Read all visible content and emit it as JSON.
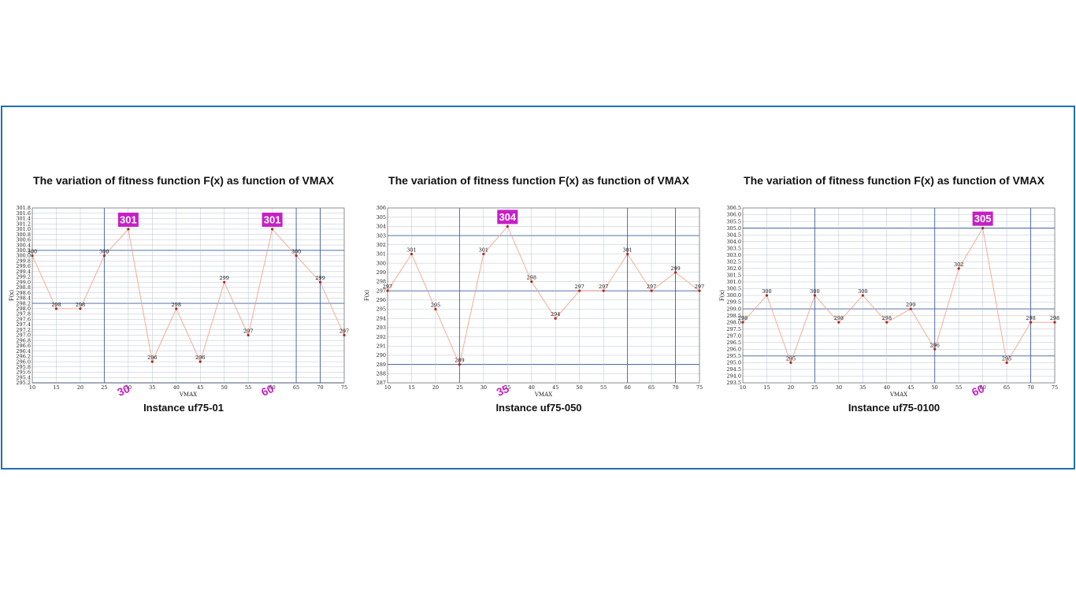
{
  "colors": {
    "frame": "#1f6fb5",
    "highlight": "#c61fc6",
    "line": "#f4a38a",
    "point": "#b0281a",
    "minor_grid": "#b8c3d0",
    "major_grid": "#3d5fa0"
  },
  "chart_data": [
    {
      "type": "line",
      "title": "The variation of fitness function F(x) as function of VMAX",
      "caption": "Instance uf75-01",
      "xlabel": "VMAX",
      "ylabel": "F(x)",
      "x": [
        10,
        15,
        20,
        25,
        30,
        35,
        40,
        45,
        50,
        55,
        60,
        65,
        70,
        75
      ],
      "values": [
        300,
        298,
        298,
        300,
        301,
        296,
        298,
        296,
        299,
        297,
        301,
        300,
        299,
        297
      ],
      "labels": [
        "300",
        "298",
        "298",
        "300",
        "301",
        "296",
        "298",
        "296",
        "299",
        "297",
        "301",
        "300",
        "299",
        "297"
      ],
      "ylim": [
        295.2,
        301.8
      ],
      "ystep": 0.2,
      "ydecimals": 1,
      "y_major": [
        295.2,
        298.2,
        300.2
      ],
      "x_major": [
        25,
        65,
        70
      ],
      "highlights": [
        {
          "x": 30,
          "value": 301,
          "label": "301",
          "xlabel": "30"
        },
        {
          "x": 60,
          "value": 301,
          "label": "301",
          "xlabel": "60"
        }
      ]
    },
    {
      "type": "line",
      "title": "The variation of fitness function F(x) as function of VMAX",
      "caption": "Instance uf75-050",
      "xlabel": "VMAX",
      "ylabel": "F(x)",
      "x": [
        10,
        15,
        20,
        25,
        30,
        35,
        40,
        45,
        50,
        55,
        60,
        65,
        70,
        75
      ],
      "values": [
        297,
        301,
        295,
        289,
        301,
        304,
        298,
        294,
        297,
        297,
        301,
        297,
        299,
        297
      ],
      "labels": [
        "297",
        "301",
        "295",
        "289",
        "301",
        "304",
        "298",
        "294",
        "297",
        "297",
        "301",
        "297",
        "299",
        "297"
      ],
      "ylim": [
        287,
        306
      ],
      "ystep": 1,
      "ydecimals": 0,
      "y_major": [
        289,
        297,
        303
      ],
      "x_major": [
        25,
        60,
        70
      ],
      "highlights": [
        {
          "x": 35,
          "value": 304,
          "label": "304",
          "xlabel": "35"
        }
      ]
    },
    {
      "type": "line",
      "title": "The variation of fitness function F(x) as function of VMAX",
      "caption": "Instance uf75-0100",
      "xlabel": "VMAX",
      "ylabel": "F(x)",
      "x": [
        10,
        15,
        20,
        25,
        30,
        35,
        40,
        45,
        50,
        55,
        60,
        65,
        70,
        75
      ],
      "values": [
        298,
        300,
        295,
        300,
        298,
        300,
        298,
        299,
        296,
        302,
        305,
        295,
        298,
        298
      ],
      "labels": [
        "298",
        "300",
        "295",
        "300",
        "298",
        "300",
        "298",
        "299",
        "296",
        "302",
        "305",
        "295",
        "298",
        "298"
      ],
      "ylim": [
        293.5,
        306.5
      ],
      "ystep": 0.5,
      "ydecimals": 1,
      "y_major": [
        295.5,
        299.0,
        305.0
      ],
      "x_major": [
        25,
        50,
        70
      ],
      "highlights": [
        {
          "x": 60,
          "value": 305,
          "label": "305",
          "xlabel": "60"
        }
      ]
    }
  ]
}
